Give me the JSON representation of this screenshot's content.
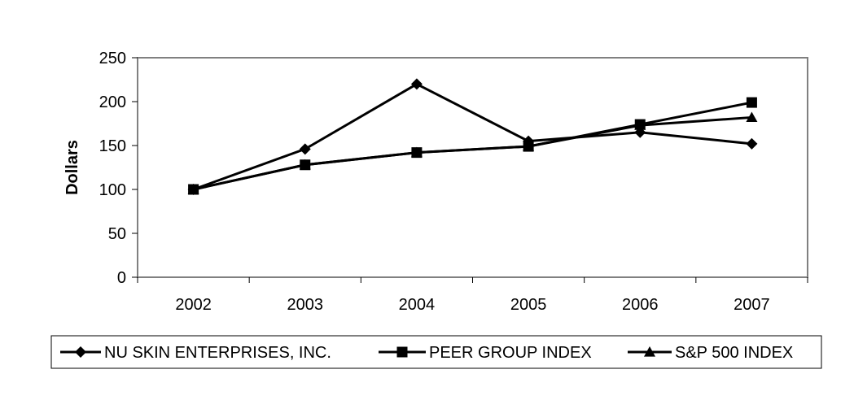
{
  "chart_data": {
    "type": "line",
    "title": "",
    "xlabel": "",
    "ylabel": "Dollars",
    "categories": [
      "2002",
      "2003",
      "2004",
      "2005",
      "2006",
      "2007"
    ],
    "ylim": [
      0,
      250
    ],
    "yticks": [
      0,
      50,
      100,
      150,
      200,
      250
    ],
    "grid": false,
    "legend_position": "bottom",
    "series": [
      {
        "name": "NU SKIN ENTERPRISES, INC.",
        "marker": "diamond",
        "color": "#000000",
        "values": [
          100,
          146,
          220,
          155,
          165,
          152
        ]
      },
      {
        "name": "PEER GROUP INDEX",
        "marker": "square",
        "color": "#000000",
        "values": [
          100,
          128,
          142,
          149,
          174,
          199
        ]
      },
      {
        "name": "S&P 500 INDEX",
        "marker": "triangle",
        "color": "#000000",
        "values": [
          100,
          128,
          142,
          149,
          173,
          182
        ]
      }
    ]
  }
}
